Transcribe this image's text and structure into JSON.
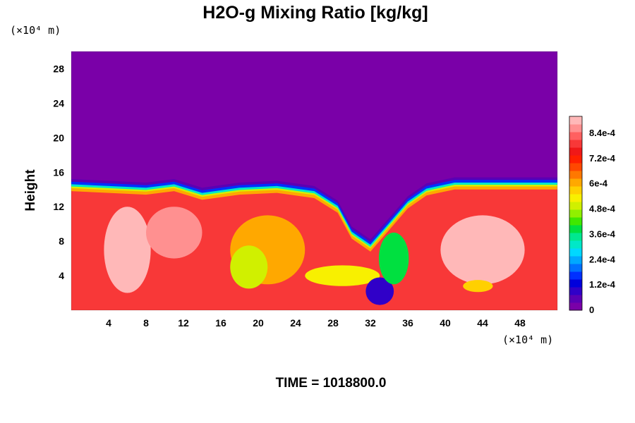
{
  "chart_data": {
    "type": "heatmap",
    "title": "H2O-g Mixing Ratio [kg/kg]",
    "ylabel": "Height",
    "y_unit_label": "(×10⁴ m)",
    "x_unit_label": "(×10⁴ m)",
    "footer": "TIME = 1018800.0",
    "xlim": [
      0,
      52
    ],
    "ylim": [
      0,
      30
    ],
    "x_ticks": [
      {
        "value": 4,
        "label": "4"
      },
      {
        "value": 8,
        "label": "8"
      },
      {
        "value": 12,
        "label": "12"
      },
      {
        "value": 16,
        "label": "16"
      },
      {
        "value": 20,
        "label": "20"
      },
      {
        "value": 24,
        "label": "24"
      },
      {
        "value": 28,
        "label": "28"
      },
      {
        "value": 32,
        "label": "32"
      },
      {
        "value": 36,
        "label": "36"
      },
      {
        "value": 40,
        "label": "40"
      },
      {
        "value": 44,
        "label": "44"
      },
      {
        "value": 48,
        "label": "48"
      }
    ],
    "y_ticks": [
      {
        "value": 4,
        "label": "4"
      },
      {
        "value": 8,
        "label": "8"
      },
      {
        "value": 12,
        "label": "12"
      },
      {
        "value": 16,
        "label": "16"
      },
      {
        "value": 20,
        "label": "20"
      },
      {
        "value": 24,
        "label": "24"
      },
      {
        "value": 28,
        "label": "28"
      }
    ],
    "colorbar": {
      "min": 0,
      "max": 0.00092,
      "ticks": [
        {
          "value": 0,
          "label": "0"
        },
        {
          "value": 0.00012,
          "label": "1.2e-4"
        },
        {
          "value": 0.00024,
          "label": "2.4e-4"
        },
        {
          "value": 0.00036,
          "label": "3.6e-4"
        },
        {
          "value": 0.00048,
          "label": "4.8e-4"
        },
        {
          "value": 0.0006,
          "label": "6e-4"
        },
        {
          "value": 0.00072,
          "label": "7.2e-4"
        },
        {
          "value": 0.00084,
          "label": "8.4e-4"
        }
      ],
      "colors": [
        "#7a00a8",
        "#5a00b4",
        "#3000c8",
        "#0000dc",
        "#0030ff",
        "#0070ff",
        "#00a8ff",
        "#00d8ff",
        "#00e8c8",
        "#00e890",
        "#00e040",
        "#40e800",
        "#90f000",
        "#d0f000",
        "#f8f000",
        "#ffd000",
        "#ffa800",
        "#ff7800",
        "#ff4800",
        "#ff2000",
        "#f01818",
        "#f83838",
        "#ff6060",
        "#ff9090",
        "#ffb8b8"
      ]
    },
    "field": {
      "background_value": 0,
      "moist_layer_top": 13.2,
      "moist_layer_value": 0.00078,
      "boundary_band": [
        {
          "x": 0,
          "top": 14.0
        },
        {
          "x": 8,
          "top": 13.6
        },
        {
          "x": 11,
          "top": 14.0
        },
        {
          "x": 14,
          "top": 13.0
        },
        {
          "x": 18,
          "top": 13.6
        },
        {
          "x": 22,
          "top": 13.8
        },
        {
          "x": 26,
          "top": 13.2
        },
        {
          "x": 28.5,
          "top": 11.5
        },
        {
          "x": 30,
          "top": 8.5
        },
        {
          "x": 32,
          "top": 7.0
        },
        {
          "x": 34,
          "top": 9.5
        },
        {
          "x": 36,
          "top": 12.0
        },
        {
          "x": 38,
          "top": 13.5
        },
        {
          "x": 41,
          "top": 14.2
        },
        {
          "x": 52,
          "top": 14.2
        }
      ],
      "features": [
        {
          "cx": 6,
          "cy": 7,
          "rx": 2.5,
          "ry": 5,
          "value": 0.0009
        },
        {
          "cx": 11,
          "cy": 9,
          "rx": 3,
          "ry": 3,
          "value": 0.00088
        },
        {
          "cx": 21,
          "cy": 7,
          "rx": 4,
          "ry": 4,
          "value": 0.00062
        },
        {
          "cx": 19,
          "cy": 5,
          "rx": 2,
          "ry": 2.5,
          "value": 0.0005
        },
        {
          "cx": 29,
          "cy": 4,
          "rx": 4,
          "ry": 1.2,
          "value": 0.00055
        },
        {
          "cx": 33,
          "cy": 2.2,
          "rx": 1.5,
          "ry": 1.6,
          "value": 8e-05
        },
        {
          "cx": 34.5,
          "cy": 6,
          "rx": 1.6,
          "ry": 3,
          "value": 0.0004
        },
        {
          "cx": 44,
          "cy": 7,
          "rx": 4.5,
          "ry": 4,
          "value": 0.0009
        },
        {
          "cx": 43.5,
          "cy": 2.8,
          "rx": 1.6,
          "ry": 0.7,
          "value": 0.00058
        }
      ]
    }
  }
}
